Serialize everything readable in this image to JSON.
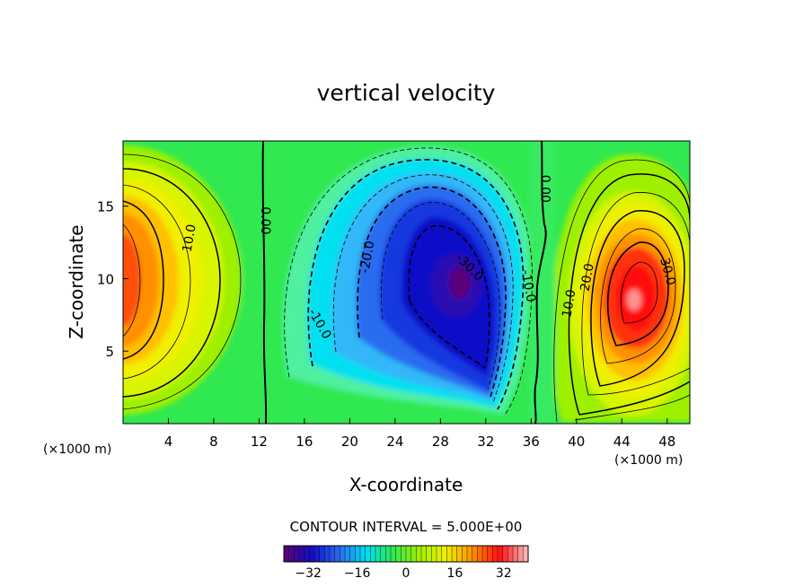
{
  "chart_data": {
    "type": "heatmap",
    "subtype": "filled contour",
    "title": "vertical velocity",
    "xlabel": "X-coordinate",
    "ylabel": "Z-coordinate",
    "x_unit": "(×1000 m)",
    "y_unit": "(×1000 m)",
    "xlim": [
      0,
      50
    ],
    "ylim": [
      0,
      19.5
    ],
    "xticks": [
      4,
      8,
      12,
      16,
      20,
      24,
      28,
      32,
      36,
      40,
      44,
      48
    ],
    "yticks": [
      5,
      10,
      15
    ],
    "contour_interval_text": "CONTOUR INTERVAL = 5.000E+00",
    "contour_interval": 5,
    "colorbar": {
      "range": [
        -40,
        40
      ],
      "ticks": [
        -32,
        -16,
        0,
        16,
        32
      ],
      "palette": [
        "#5a007a",
        "#1010c8",
        "#2a6cf0",
        "#00e0f0",
        "#30e850",
        "#9ef000",
        "#f0f000",
        "#ff9000",
        "#ff1010",
        "#ffb0b0"
      ]
    },
    "cells": [
      {
        "x": 0.0,
        "z": 10.0,
        "w": 24
      },
      {
        "x": 30.0,
        "z": 10.0,
        "w": -33
      },
      {
        "x": 44.5,
        "z": 8.8,
        "w": 36
      }
    ],
    "contour_labels": [
      {
        "text": "10.0",
        "x": 5.8,
        "z": 12.8
      },
      {
        "text": "0.00",
        "x": 12.6,
        "z": 14.0
      },
      {
        "text": "-20.0",
        "x": 21.5,
        "z": 11.5
      },
      {
        "text": "-10.0",
        "x": 17.4,
        "z": 6.9
      },
      {
        "text": "-30.0",
        "x": 30.6,
        "z": 10.8
      },
      {
        "text": "-10.0",
        "x": 35.8,
        "z": 9.5
      },
      {
        "text": "0.00",
        "x": 37.3,
        "z": 16.2
      },
      {
        "text": "10.0",
        "x": 39.3,
        "z": 8.3
      },
      {
        "text": "20.0",
        "x": 40.9,
        "z": 10.1
      },
      {
        "text": "30.0",
        "x": 48.1,
        "z": 10.5
      }
    ]
  }
}
